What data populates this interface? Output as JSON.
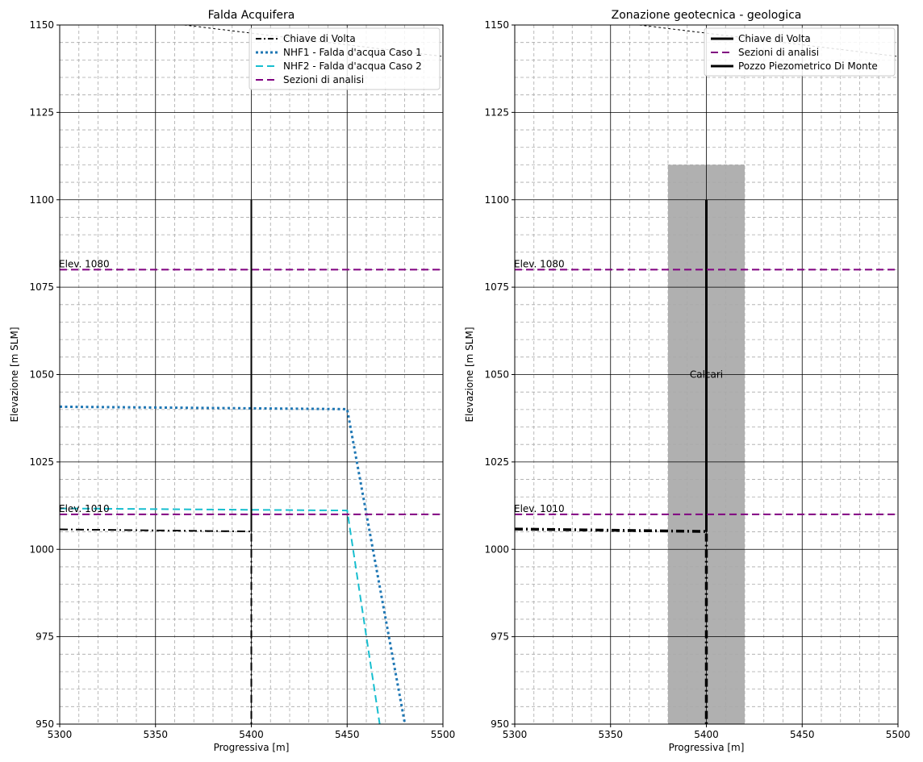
{
  "chart_data": [
    {
      "type": "line",
      "title": "Falda Acquifera",
      "xlabel": "Progressiva [m]",
      "ylabel": "Elevazione [m SLM]",
      "xlim": [
        5300,
        5500
      ],
      "ylim": [
        950,
        1150
      ],
      "xticks": [
        "5300",
        "5350",
        "5400",
        "5450",
        "5500"
      ],
      "yticks": [
        "950",
        "975",
        "1000",
        "1025",
        "1050",
        "1075",
        "1100",
        "1125",
        "1150"
      ],
      "grid": {
        "major": true,
        "minor": true
      },
      "legend_position": "top-right",
      "series": [
        {
          "name": "Chiave di Volta",
          "style": "dashdot",
          "color": "#000000",
          "width": 2,
          "x": [
            5300,
            5400,
            5400
          ],
          "y": [
            1005.7,
            1005.1,
            950
          ]
        },
        {
          "name": "NHF1 - Falda d'acqua Caso 1",
          "style": "dotted",
          "color": "#1f77b4",
          "width": 3,
          "x": [
            5300,
            5450,
            5480
          ],
          "y": [
            1040.8,
            1040.1,
            950.5
          ]
        },
        {
          "name": "NHF2 - Falda d'acqua Caso 2",
          "style": "dashed",
          "color": "#17becf",
          "width": 2,
          "x": [
            5300,
            5450,
            5467
          ],
          "y": [
            1011.7,
            1011.1,
            950
          ]
        },
        {
          "name": "Sezioni di analisi",
          "style": "dashed",
          "color": "#800080",
          "width": 2,
          "x": [
            5300,
            5500
          ],
          "y": [
            1080,
            1080
          ]
        },
        {
          "name": "",
          "style": "dashed",
          "color": "#800080",
          "width": 2,
          "legend": false,
          "x": [
            5300,
            5500
          ],
          "y": [
            1010,
            1010
          ]
        },
        {
          "name": "",
          "style": "solid",
          "color": "#000000",
          "width": 2,
          "legend": false,
          "x": [
            5400,
            5400
          ],
          "y": [
            1005.1,
            1100
          ]
        },
        {
          "name": "",
          "style": "dotted",
          "color": "#000000",
          "width": 1,
          "legend": false,
          "x": [
            5365,
            5500
          ],
          "y": [
            1150,
            1141
          ]
        }
      ],
      "annotations": [
        {
          "text": "Elev. 1080",
          "x": 5300,
          "y": 1080
        },
        {
          "text": "Elev. 1010",
          "x": 5300,
          "y": 1010
        }
      ]
    },
    {
      "type": "line",
      "title": "Zonazione geotecnica - geologica",
      "xlabel": "Progressiva [m]",
      "ylabel": "Elevazione [m SLM]",
      "xlim": [
        5300,
        5500
      ],
      "ylim": [
        950,
        1150
      ],
      "xticks": [
        "5300",
        "5350",
        "5400",
        "5450",
        "5500"
      ],
      "yticks": [
        "950",
        "975",
        "1000",
        "1025",
        "1050",
        "1075",
        "1100",
        "1125",
        "1150"
      ],
      "grid": {
        "major": true,
        "minor": true
      },
      "legend_position": "top-right",
      "regions": [
        {
          "label": "Calcari",
          "x": [
            5380,
            5420
          ],
          "y": [
            950,
            1110
          ],
          "color": "#b0b0b0"
        }
      ],
      "series": [
        {
          "name": "Chiave di Volta",
          "style": "solid",
          "color": "#000000",
          "width": 3,
          "x": [
            5400,
            5400
          ],
          "y": [
            1005,
            1100
          ]
        },
        {
          "name": "Sezioni di analisi",
          "style": "dashed",
          "color": "#800080",
          "width": 2,
          "x": [
            5300,
            5500
          ],
          "y": [
            1080,
            1080
          ]
        },
        {
          "name": "Pozzo Piezometrico Di Monte",
          "style": "solid",
          "color": "#000000",
          "width": 3,
          "legend_only": true,
          "x": [],
          "y": []
        },
        {
          "name": "",
          "style": "dashed",
          "color": "#800080",
          "width": 2,
          "legend": false,
          "x": [
            5300,
            5500
          ],
          "y": [
            1010,
            1010
          ]
        },
        {
          "name": "",
          "style": "dashdot",
          "color": "#000000",
          "width": 3.5,
          "legend": false,
          "x": [
            5300,
            5400,
            5400
          ],
          "y": [
            1005.8,
            1005.1,
            950
          ]
        },
        {
          "name": "",
          "style": "dotted",
          "color": "#000000",
          "width": 1,
          "legend": false,
          "x": [
            5365,
            5500
          ],
          "y": [
            1150,
            1141
          ]
        }
      ],
      "annotations": [
        {
          "text": "Elev. 1080",
          "x": 5300,
          "y": 1080
        },
        {
          "text": "Elev. 1010",
          "x": 5300,
          "y": 1010
        },
        {
          "text": "Calcari",
          "x": 5400,
          "y": 1050
        }
      ]
    }
  ]
}
